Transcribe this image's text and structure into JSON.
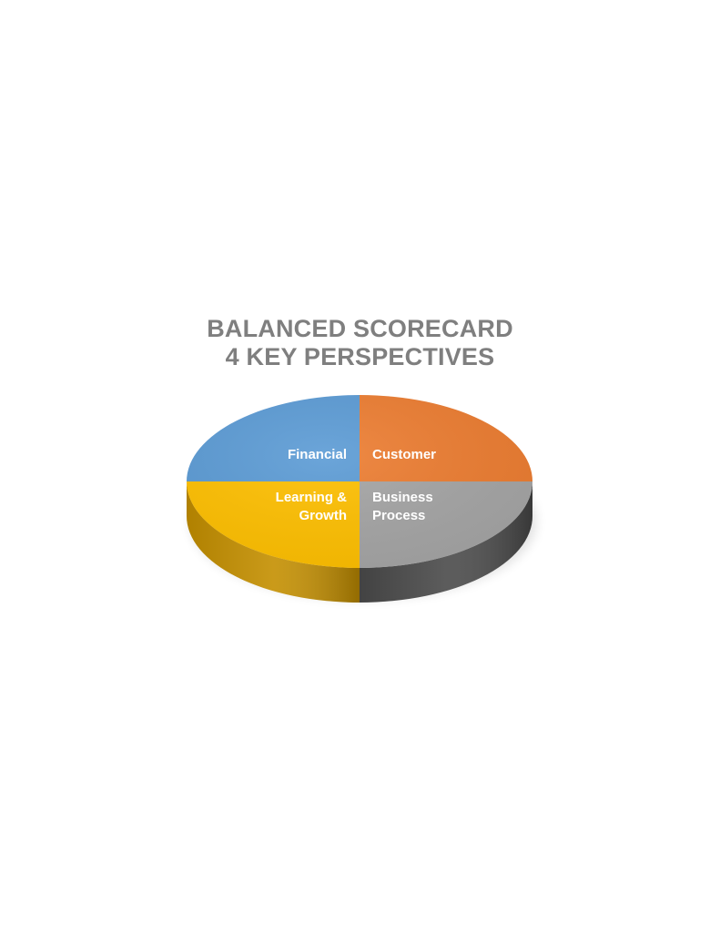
{
  "chart_data": {
    "type": "pie",
    "style": "3d",
    "title": [
      "BALANCED SCORECARD",
      "4 KEY PERSPECTIVES"
    ],
    "slices": [
      {
        "label": [
          "Customer"
        ],
        "value": 25,
        "color": "#ED7D31",
        "side_color": "#B35A1F"
      },
      {
        "label": [
          "Business",
          "Process"
        ],
        "value": 25,
        "color": "#A5A5A5",
        "side_color": "#4A4A4A"
      },
      {
        "label": [
          "Learning &",
          "Growth"
        ],
        "value": 25,
        "color": "#FFC000",
        "side_color": "#C48F00"
      },
      {
        "label": [
          "Financial"
        ],
        "value": 25,
        "color": "#5B9BD5",
        "side_color": "#3F6F9A"
      }
    ]
  }
}
